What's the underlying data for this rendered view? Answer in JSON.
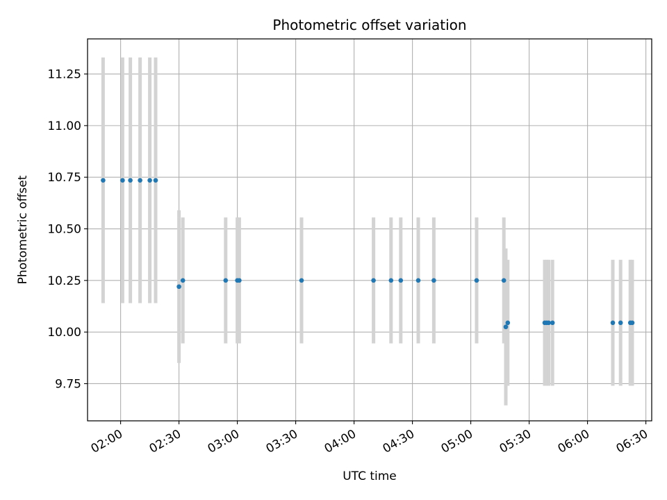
{
  "chart_data": {
    "type": "scatter",
    "title": "Photometric offset variation",
    "xlabel": "UTC time",
    "ylabel": "Photometric offset",
    "grid": true,
    "x_unit": "HH:MM UTC",
    "xlim": [
      "01:43",
      "06:33"
    ],
    "ylim": [
      9.57,
      11.42
    ],
    "x_ticks": [
      "02:00",
      "02:30",
      "03:00",
      "03:30",
      "04:00",
      "04:30",
      "05:00",
      "05:30",
      "06:00",
      "06:30"
    ],
    "y_ticks": [
      "9.75",
      "10.00",
      "10.25",
      "10.50",
      "10.75",
      "11.00",
      "11.25"
    ],
    "marker_color": "#1f77b4",
    "errorbar_color": "#d3d3d3",
    "points": [
      {
        "x": "01:51",
        "y": 10.735,
        "yerr": 0.595
      },
      {
        "x": "02:01",
        "y": 10.735,
        "yerr": 0.595
      },
      {
        "x": "02:05",
        "y": 10.735,
        "yerr": 0.595
      },
      {
        "x": "02:10",
        "y": 10.735,
        "yerr": 0.595
      },
      {
        "x": "02:15",
        "y": 10.735,
        "yerr": 0.595
      },
      {
        "x": "02:18",
        "y": 10.735,
        "yerr": 0.595
      },
      {
        "x": "02:30",
        "y": 10.22,
        "yerr": 0.37
      },
      {
        "x": "02:32",
        "y": 10.25,
        "yerr": 0.305
      },
      {
        "x": "02:54",
        "y": 10.25,
        "yerr": 0.305
      },
      {
        "x": "03:00",
        "y": 10.25,
        "yerr": 0.305
      },
      {
        "x": "03:01",
        "y": 10.25,
        "yerr": 0.305
      },
      {
        "x": "03:33",
        "y": 10.25,
        "yerr": 0.305
      },
      {
        "x": "04:10",
        "y": 10.25,
        "yerr": 0.305
      },
      {
        "x": "04:19",
        "y": 10.25,
        "yerr": 0.305
      },
      {
        "x": "04:24",
        "y": 10.25,
        "yerr": 0.305
      },
      {
        "x": "04:33",
        "y": 10.25,
        "yerr": 0.305
      },
      {
        "x": "04:41",
        "y": 10.25,
        "yerr": 0.305
      },
      {
        "x": "05:03",
        "y": 10.25,
        "yerr": 0.305
      },
      {
        "x": "05:17",
        "y": 10.25,
        "yerr": 0.305
      },
      {
        "x": "05:18",
        "y": 10.025,
        "yerr": 0.38
      },
      {
        "x": "05:19",
        "y": 10.045,
        "yerr": 0.305
      },
      {
        "x": "05:38",
        "y": 10.045,
        "yerr": 0.305
      },
      {
        "x": "05:39",
        "y": 10.045,
        "yerr": 0.305
      },
      {
        "x": "05:40",
        "y": 10.045,
        "yerr": 0.305
      },
      {
        "x": "05:42",
        "y": 10.045,
        "yerr": 0.305
      },
      {
        "x": "06:13",
        "y": 10.045,
        "yerr": 0.305
      },
      {
        "x": "06:17",
        "y": 10.045,
        "yerr": 0.305
      },
      {
        "x": "06:22",
        "y": 10.045,
        "yerr": 0.305
      },
      {
        "x": "06:23",
        "y": 10.045,
        "yerr": 0.305
      }
    ]
  }
}
